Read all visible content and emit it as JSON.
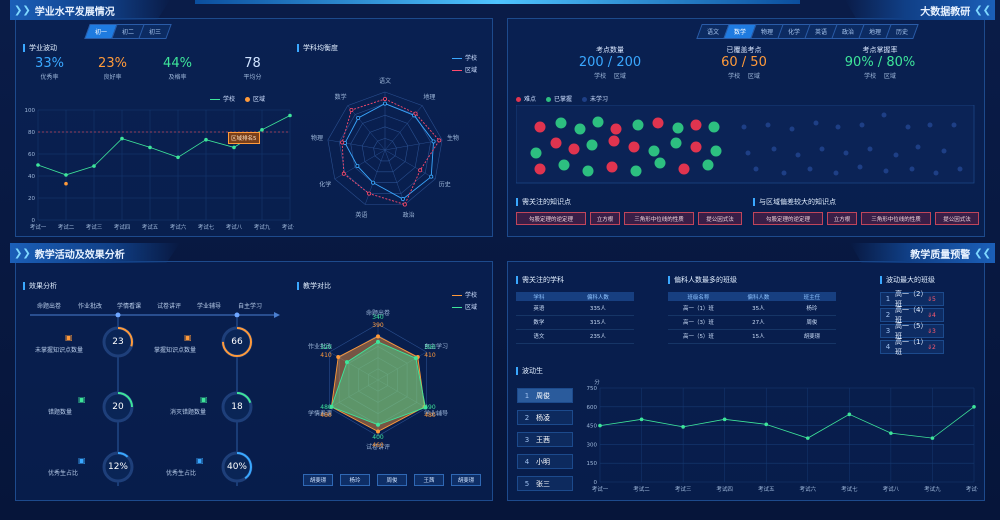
{
  "p1": {
    "title": "学业水平发展情况",
    "tabs": [
      "初一",
      "初二",
      "初三"
    ],
    "sub1": "学业波动",
    "kpis": [
      {
        "v": "33%",
        "l": "优秀率",
        "c": "#3aa8ff"
      },
      {
        "v": "23%",
        "l": "良好率",
        "c": "#ff9a3a"
      },
      {
        "v": "44%",
        "l": "及格率",
        "c": "#3ee59a"
      },
      {
        "v": "78",
        "l": "平均分",
        "c": "#cfe3ff"
      }
    ],
    "legend_school": "学校",
    "legend_region": "区域",
    "chart_tooltip": "区域排名5",
    "sub2": "学科均衡度"
  },
  "p2": {
    "title": "大数据教研",
    "tabs": [
      "语文",
      "数学",
      "物理",
      "化学",
      "英语",
      "政治",
      "地理",
      "历史"
    ],
    "active_tab": 1,
    "k1": {
      "label": "考点数量",
      "v": "200 / 200",
      "a": "学校",
      "b": "区域"
    },
    "k2": {
      "label": "已覆盖考点",
      "v": "60 / 50",
      "a": "学校",
      "b": "区域"
    },
    "k3": {
      "label": "考点掌握率",
      "v": "90% / 80%",
      "a": "学校",
      "b": "区域"
    },
    "legend": [
      "难点",
      "已掌握",
      "未学习"
    ],
    "sec1": "需关注的知识点",
    "sec2": "与区域偏差较大的知识点",
    "btns1": [
      "勾股定理的逆定理",
      "立方根",
      "三角形中位线的性质",
      "提公因式法"
    ],
    "btns2": [
      "勾股定理的逆定理",
      "立方根",
      "三角形中位线的性质",
      "提公因式法"
    ]
  },
  "p3": {
    "title": "教学活动及效果分析",
    "sub1": "效果分析",
    "steps": [
      "命题出卷",
      "作业批改",
      "学情看课",
      "试卷讲评",
      "学业辅导",
      "自主学习"
    ],
    "metrics": [
      {
        "v": "23",
        "l": "未掌握知识点数量",
        "icon": "📄"
      },
      {
        "v": "66",
        "l": "掌握知识点数量",
        "icon": "📄"
      },
      {
        "v": "20",
        "l": "错题数量",
        "icon": "🗎"
      },
      {
        "v": "18",
        "l": "消灭错题数量",
        "icon": "🗎"
      },
      {
        "v": "12%",
        "l": "优秀生占比",
        "icon": "🎓"
      },
      {
        "v": "40%",
        "l": "优秀生占比",
        "icon": "🎓"
      }
    ],
    "sub2": "教学对比",
    "legend_school": "学校",
    "legend_region": "区域",
    "names": [
      "胡斐璟",
      "杨玲",
      "周俊",
      "王茜",
      "胡斐璟"
    ]
  },
  "p4": {
    "title": "教学质量预警",
    "sec1": "需关注的学科",
    "t1_head": [
      "学科",
      "偏科人数"
    ],
    "t1": [
      [
        "英语",
        "335人"
      ],
      [
        "数学",
        "315人"
      ],
      [
        "语文",
        "235人"
      ]
    ],
    "sec2": "偏科人数最多的班级",
    "t2_head": [
      "班级名称",
      "偏科人数",
      "班主任"
    ],
    "t2": [
      [
        "高一（1）班",
        "35人",
        "杨玲"
      ],
      [
        "高一（3）班",
        "27人",
        "周俊"
      ],
      [
        "高一（5）班",
        "15人",
        "胡斐璟"
      ]
    ],
    "sec3": "波动最大的班级",
    "ranks": [
      {
        "n": "1",
        "nm": "高一（2）班",
        "c": "5"
      },
      {
        "n": "2",
        "nm": "高一（4）班",
        "c": "4"
      },
      {
        "n": "3",
        "nm": "高一（5）班",
        "c": "3"
      },
      {
        "n": "4",
        "nm": "高一（1）班",
        "c": "2"
      }
    ],
    "sec4": "波动生",
    "students": [
      {
        "n": "1",
        "nm": "周俊"
      },
      {
        "n": "2",
        "nm": "杨凌"
      },
      {
        "n": "3",
        "nm": "王茜"
      },
      {
        "n": "4",
        "nm": "小明"
      },
      {
        "n": "5",
        "nm": "张三"
      }
    ],
    "unit": "分"
  },
  "chart_data": [
    {
      "type": "line",
      "id": "p1-line",
      "categories": [
        "考试一",
        "考试二",
        "考试三",
        "考试四",
        "考试五",
        "考试六",
        "考试七",
        "考试八",
        "考试九",
        "考试十"
      ],
      "series": [
        {
          "name": "学校",
          "color": "#3ee59a",
          "values": [
            50,
            41,
            49,
            74,
            66,
            57,
            73,
            66,
            82,
            95
          ]
        },
        {
          "name": "区域",
          "color": "#ff9a3a",
          "values": [
            null,
            33,
            null,
            null,
            null,
            null,
            null,
            78,
            null,
            null
          ]
        }
      ],
      "ylim": [
        0,
        100
      ],
      "yticks": [
        0,
        20,
        40,
        60,
        80,
        100
      ],
      "ref": 80
    },
    {
      "type": "radar",
      "id": "p1-radar",
      "axes": [
        "语文",
        "地理",
        "生物",
        "历史",
        "政治",
        "英语",
        "化学",
        "物理",
        "数学"
      ],
      "series": [
        {
          "name": "学校",
          "color": "#3aa8ff",
          "values": [
            80,
            78,
            85,
            92,
            90,
            60,
            55,
            70,
            72
          ]
        },
        {
          "name": "区域",
          "color": "#ff4b6e",
          "values": [
            88,
            82,
            95,
            70,
            100,
            80,
            82,
            75,
            90
          ]
        }
      ]
    },
    {
      "type": "scatter",
      "id": "p2-scatter",
      "series": [
        {
          "name": "难点",
          "color": "#e0344f"
        },
        {
          "name": "已掌握",
          "color": "#2dbf80"
        },
        {
          "name": "未学习",
          "color": "#1e3f86"
        }
      ]
    },
    {
      "type": "radar",
      "id": "p3-radar",
      "axes": [
        "命题出卷",
        "自主学习",
        "学业辅导",
        "试卷讲评",
        "学情看课",
        "作业批改"
      ],
      "series": [
        {
          "name": "学校",
          "color": "#ff9a3a",
          "values": [
            390,
            410,
            480,
            460,
            480,
            410
          ]
        },
        {
          "name": "区域",
          "color": "#3ee59a",
          "values": [
            340,
            390,
            490,
            400,
            480,
            320
          ]
        }
      ],
      "max": 500
    },
    {
      "type": "line",
      "id": "p4-line",
      "categories": [
        "考试一",
        "考试二",
        "考试三",
        "考试四",
        "考试五",
        "考试六",
        "考试七",
        "考试八",
        "考试九",
        "考试十"
      ],
      "series": [
        {
          "name": "周俊",
          "color": "#3ee59a",
          "values": [
            450,
            500,
            440,
            500,
            460,
            350,
            540,
            390,
            350,
            600
          ]
        }
      ],
      "ylim": [
        0,
        750
      ],
      "yticks": [
        0,
        150,
        300,
        450,
        600,
        750
      ],
      "ylabel": "分"
    }
  ]
}
